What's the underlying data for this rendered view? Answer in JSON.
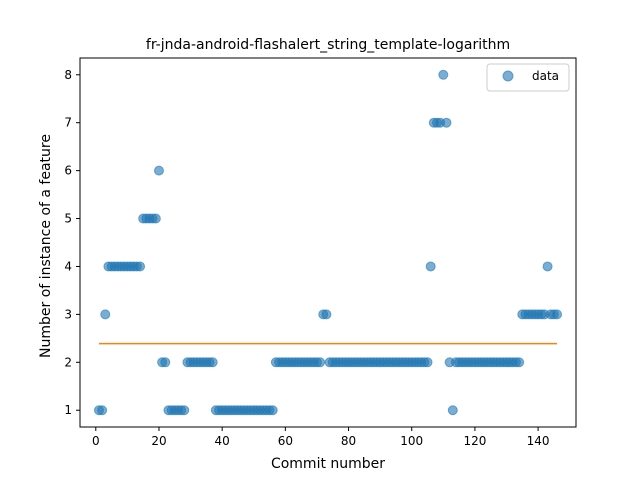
{
  "chart_data": {
    "type": "scatter",
    "title": "fr-jnda-android-flashalert_string_template-logarithm",
    "xlabel": "Commit number",
    "ylabel": "Number of instance of a feature",
    "xlim": [
      -5,
      152
    ],
    "ylim": [
      0.65,
      8.35
    ],
    "xticks": [
      0,
      20,
      40,
      60,
      80,
      100,
      120,
      140
    ],
    "yticks": [
      1,
      2,
      3,
      4,
      5,
      6,
      7,
      8
    ],
    "legend": {
      "position": "top-right",
      "entries": [
        "data"
      ]
    },
    "colors": {
      "points": "#1f77b4",
      "fit": "#ff7f0e"
    },
    "series": [
      {
        "name": "data",
        "x": [
          1,
          2,
          3,
          4,
          5,
          6,
          7,
          8,
          9,
          10,
          11,
          12,
          13,
          14,
          15,
          16,
          17,
          18,
          19,
          20,
          21,
          22,
          23,
          24,
          25,
          26,
          27,
          28,
          29,
          30,
          31,
          32,
          33,
          34,
          35,
          36,
          37,
          38,
          39,
          40,
          41,
          42,
          43,
          44,
          45,
          46,
          47,
          48,
          49,
          50,
          51,
          52,
          53,
          54,
          55,
          56,
          57,
          58,
          59,
          60,
          61,
          62,
          63,
          64,
          65,
          66,
          67,
          68,
          69,
          70,
          71,
          72,
          73,
          74,
          75,
          76,
          77,
          78,
          79,
          80,
          81,
          82,
          83,
          84,
          85,
          86,
          87,
          88,
          89,
          90,
          91,
          92,
          93,
          94,
          95,
          96,
          97,
          98,
          99,
          100,
          101,
          102,
          103,
          104,
          105,
          106,
          107,
          108,
          109,
          110,
          111,
          112,
          113,
          114,
          115,
          116,
          117,
          118,
          119,
          120,
          121,
          122,
          123,
          124,
          125,
          126,
          127,
          128,
          129,
          130,
          131,
          132,
          133,
          134,
          135,
          136,
          137,
          138,
          139,
          140,
          141,
          142,
          143,
          144,
          145,
          146
        ],
        "y": [
          1,
          1,
          3,
          4,
          4,
          4,
          4,
          4,
          4,
          4,
          4,
          4,
          4,
          4,
          5,
          5,
          5,
          5,
          5,
          6,
          2,
          2,
          1,
          1,
          1,
          1,
          1,
          1,
          2,
          2,
          2,
          2,
          2,
          2,
          2,
          2,
          2,
          1,
          1,
          1,
          1,
          1,
          1,
          1,
          1,
          1,
          1,
          1,
          1,
          1,
          1,
          1,
          1,
          1,
          1,
          1,
          2,
          2,
          2,
          2,
          2,
          2,
          2,
          2,
          2,
          2,
          2,
          2,
          2,
          2,
          2,
          3,
          3,
          2,
          2,
          2,
          2,
          2,
          2,
          2,
          2,
          2,
          2,
          2,
          2,
          2,
          2,
          2,
          2,
          2,
          2,
          2,
          2,
          2,
          2,
          2,
          2,
          2,
          2,
          2,
          2,
          2,
          2,
          2,
          2,
          4,
          7,
          7,
          7,
          8,
          7,
          2,
          1,
          2,
          2,
          2,
          2,
          2,
          2,
          2,
          2,
          2,
          2,
          2,
          2,
          2,
          2,
          2,
          2,
          2,
          2,
          2,
          2,
          2,
          3,
          3,
          3,
          3,
          3,
          3,
          3,
          3,
          4,
          3,
          3,
          3
        ]
      },
      {
        "name": "",
        "type": "line",
        "x": [
          1,
          146
        ],
        "y": [
          2.39,
          2.39
        ]
      }
    ]
  }
}
